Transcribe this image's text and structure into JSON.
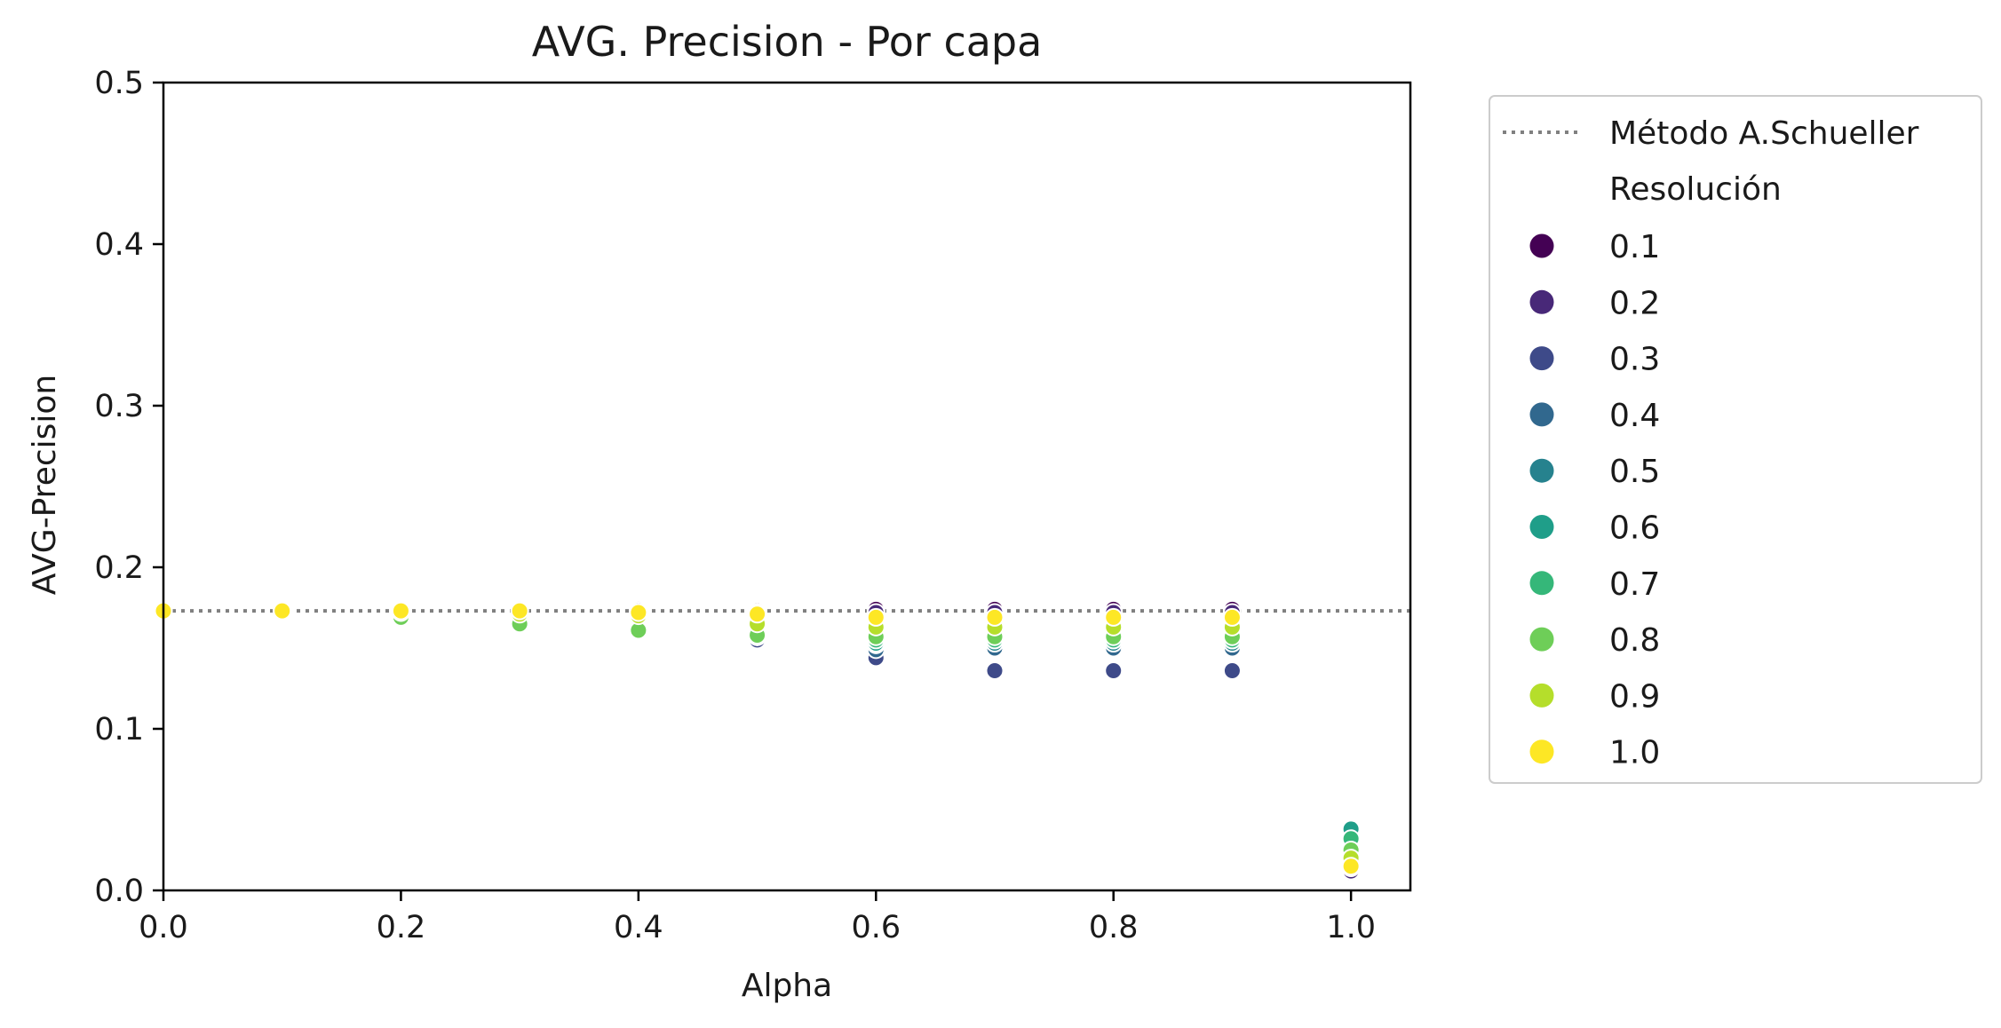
{
  "chart_data": {
    "type": "scatter",
    "title": "AVG. Precision - Por capa",
    "xlabel": "Alpha",
    "ylabel": "AVG-Precision",
    "xlim": [
      0.0,
      1.05
    ],
    "ylim": [
      0.0,
      0.5
    ],
    "xticks": [
      "0.0",
      "0.2",
      "0.4",
      "0.6",
      "0.8",
      "1.0"
    ],
    "xtick_values": [
      0.0,
      0.2,
      0.4,
      0.6,
      0.8,
      1.0
    ],
    "yticks": [
      "0.0",
      "0.1",
      "0.2",
      "0.3",
      "0.4",
      "0.5"
    ],
    "ytick_values": [
      0.0,
      0.1,
      0.2,
      0.3,
      0.4,
      0.5
    ],
    "grid": false,
    "legend_position": "outside-right",
    "reference_line": {
      "label": "Método A.Schueller",
      "y": 0.173,
      "style": "dotted",
      "color": "#808080"
    },
    "legend_title": "Resolución",
    "x": [
      0.0,
      0.1,
      0.2,
      0.3,
      0.4,
      0.5,
      0.6,
      0.7,
      0.8,
      0.9,
      1.0
    ],
    "series": [
      {
        "name": "0.1",
        "color": "#440154",
        "y": [
          0.173,
          0.173,
          0.173,
          0.174,
          0.174,
          0.173,
          0.174,
          0.174,
          0.174,
          0.174,
          0.011
        ]
      },
      {
        "name": "0.2",
        "color": "#482878",
        "y": [
          0.173,
          0.173,
          0.173,
          0.173,
          0.173,
          0.172,
          0.172,
          0.172,
          0.172,
          0.172,
          0.012
        ]
      },
      {
        "name": "0.3",
        "color": "#3e4a89",
        "y": [
          0.173,
          0.173,
          0.172,
          0.17,
          0.168,
          0.155,
          0.144,
          0.136,
          0.136,
          0.136,
          0.014
        ]
      },
      {
        "name": "0.4",
        "color": "#31688e",
        "y": [
          0.173,
          0.173,
          0.172,
          0.17,
          0.168,
          0.157,
          0.149,
          0.15,
          0.15,
          0.15,
          0.016
        ]
      },
      {
        "name": "0.5",
        "color": "#26828e",
        "y": [
          0.173,
          0.173,
          0.172,
          0.17,
          0.168,
          0.158,
          0.152,
          0.153,
          0.153,
          0.153,
          0.024
        ]
      },
      {
        "name": "0.6",
        "color": "#1f9e89",
        "y": [
          0.173,
          0.173,
          0.171,
          0.167,
          0.163,
          0.157,
          0.153,
          0.155,
          0.155,
          0.155,
          0.038
        ]
      },
      {
        "name": "0.7",
        "color": "#35b779",
        "y": [
          0.173,
          0.173,
          0.17,
          0.166,
          0.162,
          0.157,
          0.155,
          0.155,
          0.155,
          0.155,
          0.032
        ]
      },
      {
        "name": "0.8",
        "color": "#6ece58",
        "y": [
          0.173,
          0.173,
          0.169,
          0.165,
          0.161,
          0.158,
          0.157,
          0.157,
          0.157,
          0.157,
          0.025
        ]
      },
      {
        "name": "0.9",
        "color": "#b5de2b",
        "y": [
          0.173,
          0.173,
          0.172,
          0.171,
          0.17,
          0.165,
          0.163,
          0.163,
          0.163,
          0.163,
          0.02
        ]
      },
      {
        "name": "1.0",
        "color": "#fde725",
        "y": [
          0.173,
          0.173,
          0.173,
          0.173,
          0.172,
          0.171,
          0.169,
          0.169,
          0.169,
          0.169,
          0.015
        ]
      }
    ]
  }
}
